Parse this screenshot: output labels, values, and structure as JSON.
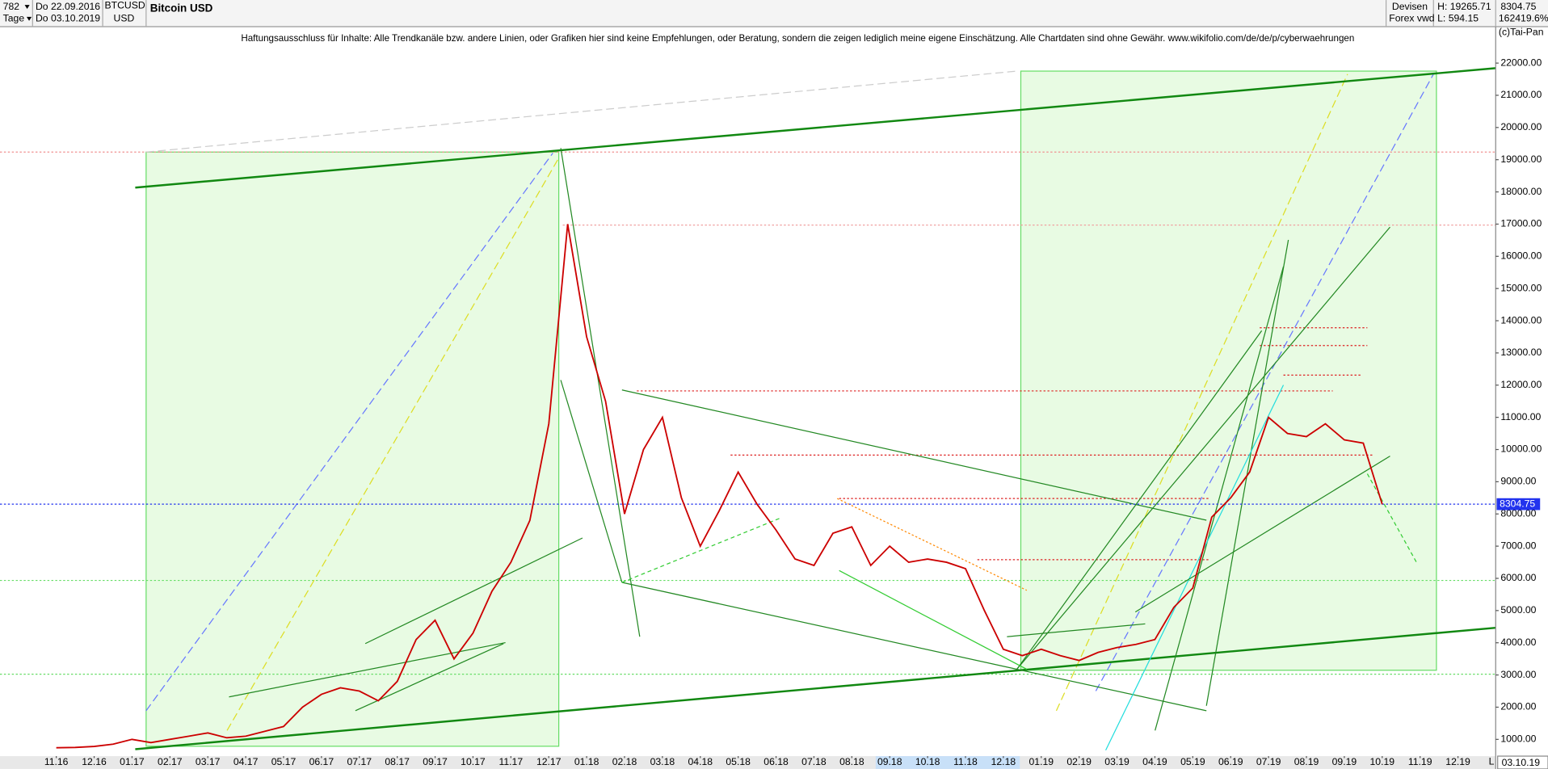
{
  "header": {
    "count": "782",
    "period": "Tage",
    "from": "Do 22.09.2016",
    "to": "Do 03.10.2019",
    "symbol": "BTCUSD",
    "currency": "USD",
    "market": "Devisen",
    "source": "Forex vwd",
    "high": "H: 19265.71",
    "low": "L: 594.15",
    "change": "162419.6%",
    "copyright": "(c)Tai-Pan",
    "date_box": "03.10.19",
    "scale_mode": "L"
  },
  "chart_data": {
    "type": "line",
    "title": "Bitcoin USD",
    "subtitle": "Haftungsausschluss für Inhalte: Alle Trendkanäle bzw. andere Linien, oder Grafiken hier sind keine Empfehlungen, oder Beratung, sondern die zeigen lediglich meine eigene Einschätzung. Alle Chartdaten sind ohne Gewähr.  www.wikifolio.com/de/de/p/cyberwaehrungen",
    "categories": [
      "11.16",
      null,
      "12.16",
      null,
      "01.17",
      null,
      "02.17",
      null,
      "03.17",
      null,
      "04.17",
      null,
      "05.17",
      null,
      "06.17",
      null,
      "07.17",
      null,
      "08.17",
      null,
      "09.17",
      null,
      "10.17",
      null,
      "11.17",
      null,
      "12.17",
      null,
      "01.18",
      null,
      "02.18",
      null,
      "03.18",
      null,
      "04.18",
      null,
      "05.18",
      null,
      "06.18",
      null,
      "07.18",
      null,
      "08.18",
      null,
      "09.18",
      null,
      "10.18",
      null,
      "11.18",
      null,
      "12.18",
      null,
      "01.19",
      null,
      "02.19",
      null,
      "03.19",
      null,
      "04.19",
      null,
      "05.19",
      null,
      "06.19",
      null,
      "07.19",
      null,
      "08.19",
      null,
      "09.19",
      null,
      "10.19",
      null,
      "11.19",
      null,
      "12.19",
      null
    ],
    "values": [
      740,
      750,
      780,
      850,
      1000,
      900,
      1000,
      1100,
      1200,
      1050,
      1100,
      1250,
      1400,
      2000,
      2400,
      2600,
      2500,
      2200,
      2800,
      4100,
      4700,
      3500,
      4300,
      5600,
      6500,
      7800,
      10800,
      17000,
      13500,
      11500,
      8000,
      10000,
      11000,
      8500,
      7000,
      8100,
      9300,
      8300,
      7500,
      6600,
      6400,
      7400,
      7600,
      6400,
      7000,
      6500,
      6600,
      6500,
      6300,
      5000,
      3800,
      3600,
      3800,
      3600,
      3450,
      3700,
      3850,
      3950,
      4100,
      5100,
      5700,
      7900,
      8500,
      9300,
      11000,
      10500,
      10400,
      10800,
      10300,
      10200,
      8300,
      null,
      null,
      null,
      null,
      null
    ],
    "color": "#cc0000",
    "current_price": 8304.75,
    "ylim": [
      480,
      23130
    ],
    "yticks": [
      {
        "value": 1000,
        "label": "1000.00"
      },
      {
        "value": 2000,
        "label": "2000.00"
      },
      {
        "value": 3000,
        "label": "3000.00"
      },
      {
        "value": 4000,
        "label": "4000.00"
      },
      {
        "value": 5000,
        "label": "5000.00"
      },
      {
        "value": 6000,
        "label": "6000.00"
      },
      {
        "value": 7000,
        "label": "7000.00"
      },
      {
        "value": 8000,
        "label": "8000.00"
      },
      {
        "value": 9000,
        "label": "9000.00"
      },
      {
        "value": 10000,
        "label": "10000.00"
      },
      {
        "value": 11000,
        "label": "11000.00"
      },
      {
        "value": 12000,
        "label": "12000.00"
      },
      {
        "value": 13000,
        "label": "13000.00"
      },
      {
        "value": 14000,
        "label": "14000.00"
      },
      {
        "value": 15000,
        "label": "15000.00"
      },
      {
        "value": 16000,
        "label": "16000.00"
      },
      {
        "value": 17000,
        "label": "17000.00"
      },
      {
        "value": 18000,
        "label": "18000.00"
      },
      {
        "value": 19000,
        "label": "19000.00"
      },
      {
        "value": 20000,
        "label": "20000.00"
      },
      {
        "value": 21000,
        "label": "21000.00"
      },
      {
        "value": 22000,
        "label": "22000.00"
      }
    ],
    "grid": false
  }
}
